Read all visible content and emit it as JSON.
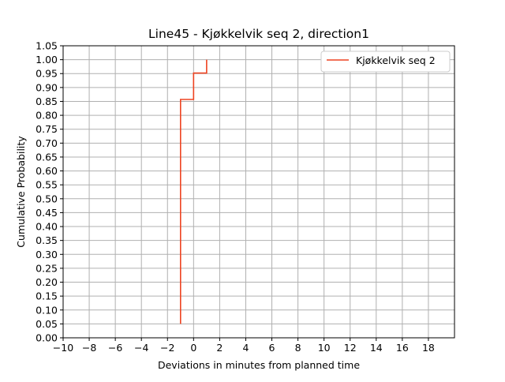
{
  "chart_data": {
    "type": "line",
    "step": true,
    "title": "Line45 - Kjøkkelvik seq 2, direction1",
    "xlabel": "Deviations in minutes from planned time",
    "ylabel": "Cumulative Probability",
    "xlim": [
      -10,
      20
    ],
    "ylim": [
      0,
      1.05
    ],
    "x_ticks": [
      -10,
      -8,
      -6,
      -4,
      -2,
      0,
      2,
      4,
      6,
      8,
      10,
      12,
      14,
      16,
      18
    ],
    "x_tick_labels": [
      "−10",
      "−8",
      "−6",
      "−4",
      "−2",
      "0",
      "2",
      "4",
      "6",
      "8",
      "10",
      "12",
      "14",
      "16",
      "18"
    ],
    "y_ticks": [
      0,
      0.05,
      0.1,
      0.15,
      0.2,
      0.25,
      0.3,
      0.35,
      0.4,
      0.45,
      0.5,
      0.55,
      0.6,
      0.65,
      0.7,
      0.75,
      0.8,
      0.85,
      0.9,
      0.95,
      1.0,
      1.05
    ],
    "y_tick_labels": [
      "0.00",
      "0.05",
      "0.10",
      "0.15",
      "0.20",
      "0.25",
      "0.30",
      "0.35",
      "0.40",
      "0.45",
      "0.50",
      "0.55",
      "0.60",
      "0.65",
      "0.70",
      "0.75",
      "0.80",
      "0.85",
      "0.90",
      "0.95",
      "1.00",
      "1.05"
    ],
    "grid": true,
    "legend_position": "top-right",
    "series": [
      {
        "name": "Kjøkkelvik seq 2",
        "color": "#ee4422",
        "points": [
          [
            -1,
            0.05
          ],
          [
            -1,
            0.857
          ],
          [
            0,
            0.857
          ],
          [
            0,
            0.952
          ],
          [
            1,
            0.952
          ],
          [
            1,
            1.0
          ]
        ]
      }
    ]
  }
}
